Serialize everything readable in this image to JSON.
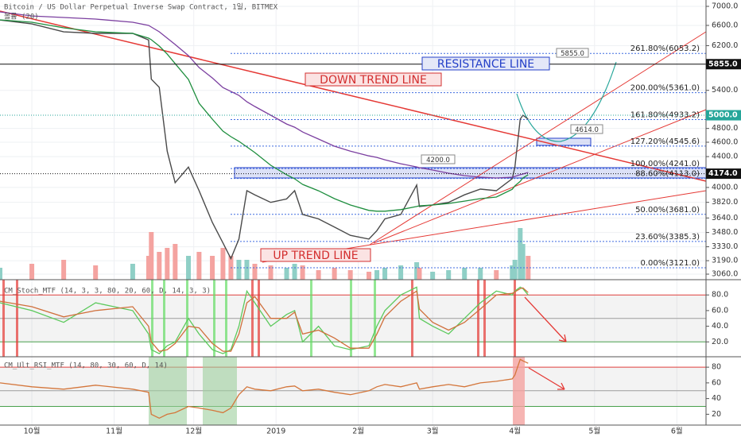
{
  "chart_data": [
    {
      "type": "line",
      "title": "Bitcoin / US Dollar Perpetual Inverse Swap Contract, 1일, BITMEX",
      "subtitle": "볼륨 (20)",
      "log_scale": true,
      "grid": true,
      "x": [
        -12,
        0,
        12,
        24,
        38,
        44,
        45,
        48,
        51,
        54,
        59,
        63,
        68,
        72,
        75,
        78,
        81,
        84,
        90,
        96,
        99,
        102,
        108,
        114,
        120,
        127,
        130,
        133,
        139,
        145,
        146,
        151,
        157,
        163,
        169,
        175,
        181,
        182,
        184,
        185,
        187
      ],
      "xlim": [
        -12,
        254
      ],
      "xticks": [
        {
          "value": 0,
          "label": "10월"
        },
        {
          "value": 31,
          "label": "11월"
        },
        {
          "value": 61,
          "label": "12월"
        },
        {
          "value": 92,
          "label": "2019"
        },
        {
          "value": 123,
          "label": "2월"
        },
        {
          "value": 151,
          "label": "3월"
        },
        {
          "value": 182,
          "label": "4월"
        },
        {
          "value": 212,
          "label": "5월"
        },
        {
          "value": 243,
          "label": "6월"
        }
      ],
      "ylim": [
        3008,
        7139
      ],
      "yticks": [
        {
          "value": 7000,
          "label": "7000.0"
        },
        {
          "value": 6600,
          "label": "6600.0"
        },
        {
          "value": 6200,
          "label": "6200.0"
        },
        {
          "value": 5400,
          "label": "5400.0"
        },
        {
          "value": 4800,
          "label": "4800.0"
        },
        {
          "value": 4600,
          "label": "4600.0"
        },
        {
          "value": 4400,
          "label": "4400.0"
        },
        {
          "value": 4000,
          "label": "4000.0"
        },
        {
          "value": 3820,
          "label": "3820.0"
        },
        {
          "value": 3640,
          "label": "3640.0"
        },
        {
          "value": 3480,
          "label": "3480.0"
        },
        {
          "value": 3330,
          "label": "3330.0"
        },
        {
          "value": 3190,
          "label": "3190.0"
        },
        {
          "value": 3060,
          "label": "3060.0"
        }
      ],
      "series": [
        {
          "color": "#4a4a4a",
          "values": [
            6710,
            6630,
            6470,
            6440,
            6440,
            6310,
            5590,
            5450,
            4475,
            4060,
            4260,
            3960,
            3590,
            3370,
            3210,
            3410,
            3960,
            3910,
            3820,
            3860,
            3960,
            3680,
            3630,
            3540,
            3450,
            3410,
            3500,
            3630,
            3680,
            4030,
            3770,
            3790,
            3820,
            3910,
            3980,
            3960,
            4110,
            4260,
            4940,
            5000,
            4940
          ]
        },
        {
          "color": "#7b3fa0",
          "values": [
            6881,
            6796,
            6763,
            6731,
            6665,
            6600,
            6567,
            6471,
            6345,
            6222,
            6011,
            5794,
            5611,
            5447,
            5382,
            5317,
            5213,
            5137,
            5000,
            4866,
            4819,
            4748,
            4645,
            4544,
            4475,
            4410,
            4389,
            4357,
            4304,
            4262,
            4252,
            4221,
            4180,
            4149,
            4129,
            4119,
            4129,
            4139,
            4160,
            4170,
            4190
          ]
        },
        {
          "color": "#1e8e3e",
          "values": [
            6714,
            6665,
            6551,
            6471,
            6439,
            6345,
            6314,
            6191,
            6039,
            5865,
            5585,
            5188,
            4939,
            4761,
            4680,
            4612,
            4534,
            4456,
            4284,
            4160,
            4109,
            4038,
            3959,
            3864,
            3789,
            3726,
            3717,
            3717,
            3735,
            3771,
            3780,
            3789,
            3807,
            3835,
            3864,
            3883,
            3978,
            4019,
            4077,
            4119,
            4160
          ]
        }
      ],
      "volume": {
        "values": [
          15,
          20,
          25,
          18,
          20,
          30,
          60,
          35,
          40,
          45,
          30,
          35,
          30,
          40,
          30,
          25,
          25,
          20,
          18,
          15,
          20,
          18,
          12,
          15,
          12,
          10,
          12,
          15,
          18,
          22,
          15,
          10,
          12,
          15,
          15,
          12,
          18,
          25,
          65,
          45,
          30
        ],
        "ylim": [
          0,
          100
        ],
        "up_color": "#8fcfc6",
        "down_color": "#f4a3a0"
      },
      "levels": [
        {
          "value": 5855,
          "label": "5855.0",
          "color": "#111111"
        },
        {
          "value": 5000,
          "label": "5000.0",
          "color": "#26a69a"
        },
        {
          "value": 4174,
          "label": "4174.0",
          "color": "#111111"
        }
      ],
      "fib": [
        {
          "value": 6053.2,
          "label": "261.80%(6053.2)"
        },
        {
          "value": 5361.0,
          "label": "200.00%(5361.0)"
        },
        {
          "value": 4933.2,
          "label": "161.80%(4933.2)"
        },
        {
          "value": 4545.6,
          "label": "127.20%(4545.6)"
        },
        {
          "value": 4241.0,
          "label": "100.00%(4241.0)"
        },
        {
          "value": 4113.0,
          "label": "88.60%(4113.0)"
        },
        {
          "value": 3681.0,
          "label": "50.00%(3681.0)"
        },
        {
          "value": 3385.3,
          "label": "23.60%(3385.3)"
        },
        {
          "value": 3121.0,
          "label": "0.00%(3121.0)"
        }
      ],
      "annotations": [
        {
          "text": "RESISTANCE LINE",
          "color": "#2440c8",
          "background": "#e4e8f8"
        },
        {
          "text": "DOWN TREND LINE",
          "color": "#d32f2f",
          "background": "#fbe3e3"
        },
        {
          "text": "UP TREND LINE",
          "color": "#d32f2f",
          "background": "#fbe3e3"
        },
        {
          "text": "5855.0",
          "color": "#333333",
          "background": "#ffffff"
        },
        {
          "text": "4200.0",
          "color": "#333333",
          "background": "#ffffff"
        },
        {
          "text": "4614.0",
          "color": "#333333",
          "background": "#ffffff"
        }
      ]
    },
    {
      "type": "line",
      "title": "CM_Stoch_MTF (14, 3, 3, 80, 20, 60, D, 14, 3, 3)",
      "log_scale": false,
      "grid": false,
      "ylim": [
        1,
        99.5
      ],
      "yticks": [
        {
          "value": 80,
          "label": "80.0"
        },
        {
          "value": 60,
          "label": "60.0"
        },
        {
          "value": 40,
          "label": "40.0"
        },
        {
          "value": 20,
          "label": "20.0"
        }
      ],
      "hlines": [
        {
          "value": 80,
          "color": "#e53935"
        },
        {
          "value": 50,
          "color": "#9e9e9e"
        },
        {
          "value": 20,
          "color": "#43a047"
        }
      ],
      "series": [
        {
          "color": "#5cc95c",
          "values": [
            70,
            60,
            45,
            70,
            60,
            30,
            10,
            5,
            15,
            20,
            50,
            30,
            10,
            5,
            10,
            40,
            85,
            70,
            40,
            55,
            60,
            20,
            40,
            15,
            10,
            15,
            40,
            60,
            80,
            90,
            50,
            40,
            30,
            50,
            70,
            85,
            80,
            85,
            90,
            88,
            80
          ]
        },
        {
          "color": "#d0703c",
          "values": [
            72,
            65,
            52,
            60,
            65,
            40,
            20,
            8,
            10,
            18,
            40,
            38,
            18,
            8,
            8,
            30,
            70,
            78,
            50,
            50,
            58,
            30,
            35,
            25,
            12,
            12,
            30,
            52,
            72,
            85,
            62,
            45,
            35,
            45,
            62,
            80,
            82,
            84,
            88,
            89,
            83
          ]
        }
      ]
    },
    {
      "type": "line",
      "title": "CM_Ult_RSI_MTF (14, 80, 30, 60, D, 14)",
      "log_scale": false,
      "grid": false,
      "ylim": [
        6.2,
        93.3
      ],
      "yticks": [
        80,
        60,
        40,
        20
      ],
      "hlines": [
        {
          "value": 80,
          "color": "#e53935"
        },
        {
          "value": 50,
          "color": "#9e9e9e"
        },
        {
          "value": 30,
          "color": "#43a047"
        }
      ],
      "series": [
        {
          "color": "#d4763b",
          "values": [
            60,
            55,
            52,
            57,
            52,
            48,
            20,
            15,
            20,
            22,
            30,
            28,
            25,
            22,
            28,
            45,
            55,
            52,
            50,
            55,
            56,
            50,
            52,
            48,
            45,
            50,
            55,
            58,
            55,
            60,
            52,
            55,
            58,
            55,
            60,
            62,
            65,
            70,
            90,
            88,
            85
          ]
        }
      ]
    }
  ]
}
